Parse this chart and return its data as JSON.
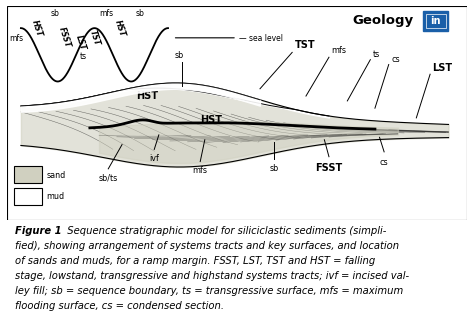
{
  "background_color": "#ffffff",
  "sand_color": "#d0d0c0",
  "mud_color": "#ffffff",
  "caption_bold": "Figure 1",
  "caption_rest_line1": "  Sequence stratigraphic model for siliciclastic sediments (simpli-",
  "caption_lines": [
    "fied), showing arrangement of systems tracts and key surfaces, and location",
    "of sands and muds, for a ramp margin. FSST, LST, TST and HST = falling",
    "stage, lowstand, transgressive and highstand systems tracts; ivf = incised val-",
    "ley fill; sb = sequence boundary, ts = transgressive surface, mfs = maximum",
    "flooding surface, cs = condensed section."
  ],
  "geology_text": "Geology",
  "geology_color": "#000000",
  "logo_bg": "#1a5fa8",
  "logo_border": "#1a5fa8"
}
